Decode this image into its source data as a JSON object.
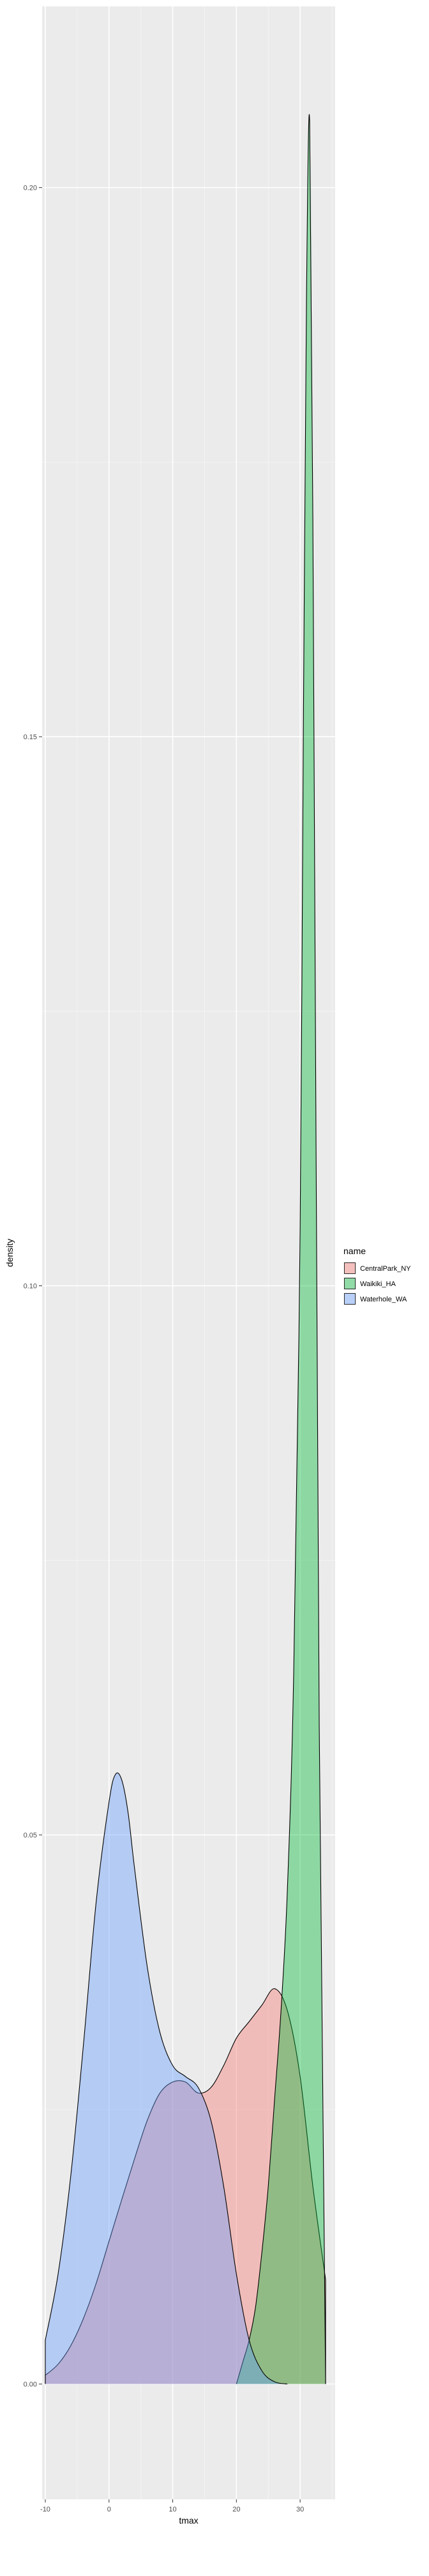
{
  "chart_data": {
    "type": "area",
    "xlabel": "tmax",
    "ylabel": "density",
    "xlim": [
      -10.5,
      35.5
    ],
    "ylim": [
      -0.0105,
      0.2165
    ],
    "x_ticks": [
      -10,
      0,
      10,
      20,
      30
    ],
    "y_ticks": [
      0.0,
      0.05,
      0.1,
      0.15,
      0.2
    ],
    "y_tick_labels": [
      "0.00",
      "0.05",
      "0.10",
      "0.15",
      "0.20"
    ],
    "grid": true,
    "legend_position": "right",
    "legend_title": "name",
    "series": [
      {
        "name": "CentralPark_NY",
        "color": "#F8766D",
        "x": [
          -10,
          -8,
          -6,
          -4,
          -2,
          0,
          2,
          4,
          6,
          8,
          10,
          12,
          14,
          16,
          18,
          20,
          22,
          24,
          26,
          28,
          30,
          32,
          34
        ],
        "y": [
          0.0008,
          0.0018,
          0.0035,
          0.006,
          0.0092,
          0.013,
          0.0168,
          0.0205,
          0.024,
          0.0265,
          0.0275,
          0.0275,
          0.0265,
          0.027,
          0.029,
          0.0315,
          0.033,
          0.0345,
          0.036,
          0.034,
          0.028,
          0.018,
          0.0095
        ]
      },
      {
        "name": "Waikiki_HA",
        "color": "#00BA38",
        "x": [
          20,
          21,
          22,
          23,
          24,
          25,
          26,
          27,
          28,
          29,
          30,
          30.5,
          31,
          31.5,
          32,
          33,
          34
        ],
        "y": [
          0.0,
          0.002,
          0.004,
          0.007,
          0.012,
          0.018,
          0.026,
          0.034,
          0.045,
          0.065,
          0.105,
          0.15,
          0.19,
          0.206,
          0.17,
          0.06,
          0.0
        ]
      },
      {
        "name": "Waterhole_WA",
        "color": "#619CFF",
        "x": [
          -10,
          -8,
          -6,
          -4,
          -2,
          0,
          1,
          2,
          3,
          4,
          6,
          8,
          10,
          12,
          14,
          16,
          18,
          20,
          22,
          24,
          26,
          28
        ],
        "y": [
          0.004,
          0.01,
          0.019,
          0.031,
          0.044,
          0.053,
          0.0555,
          0.055,
          0.052,
          0.047,
          0.038,
          0.032,
          0.029,
          0.028,
          0.027,
          0.024,
          0.018,
          0.01,
          0.004,
          0.0012,
          0.0002,
          0.0
        ]
      }
    ]
  }
}
